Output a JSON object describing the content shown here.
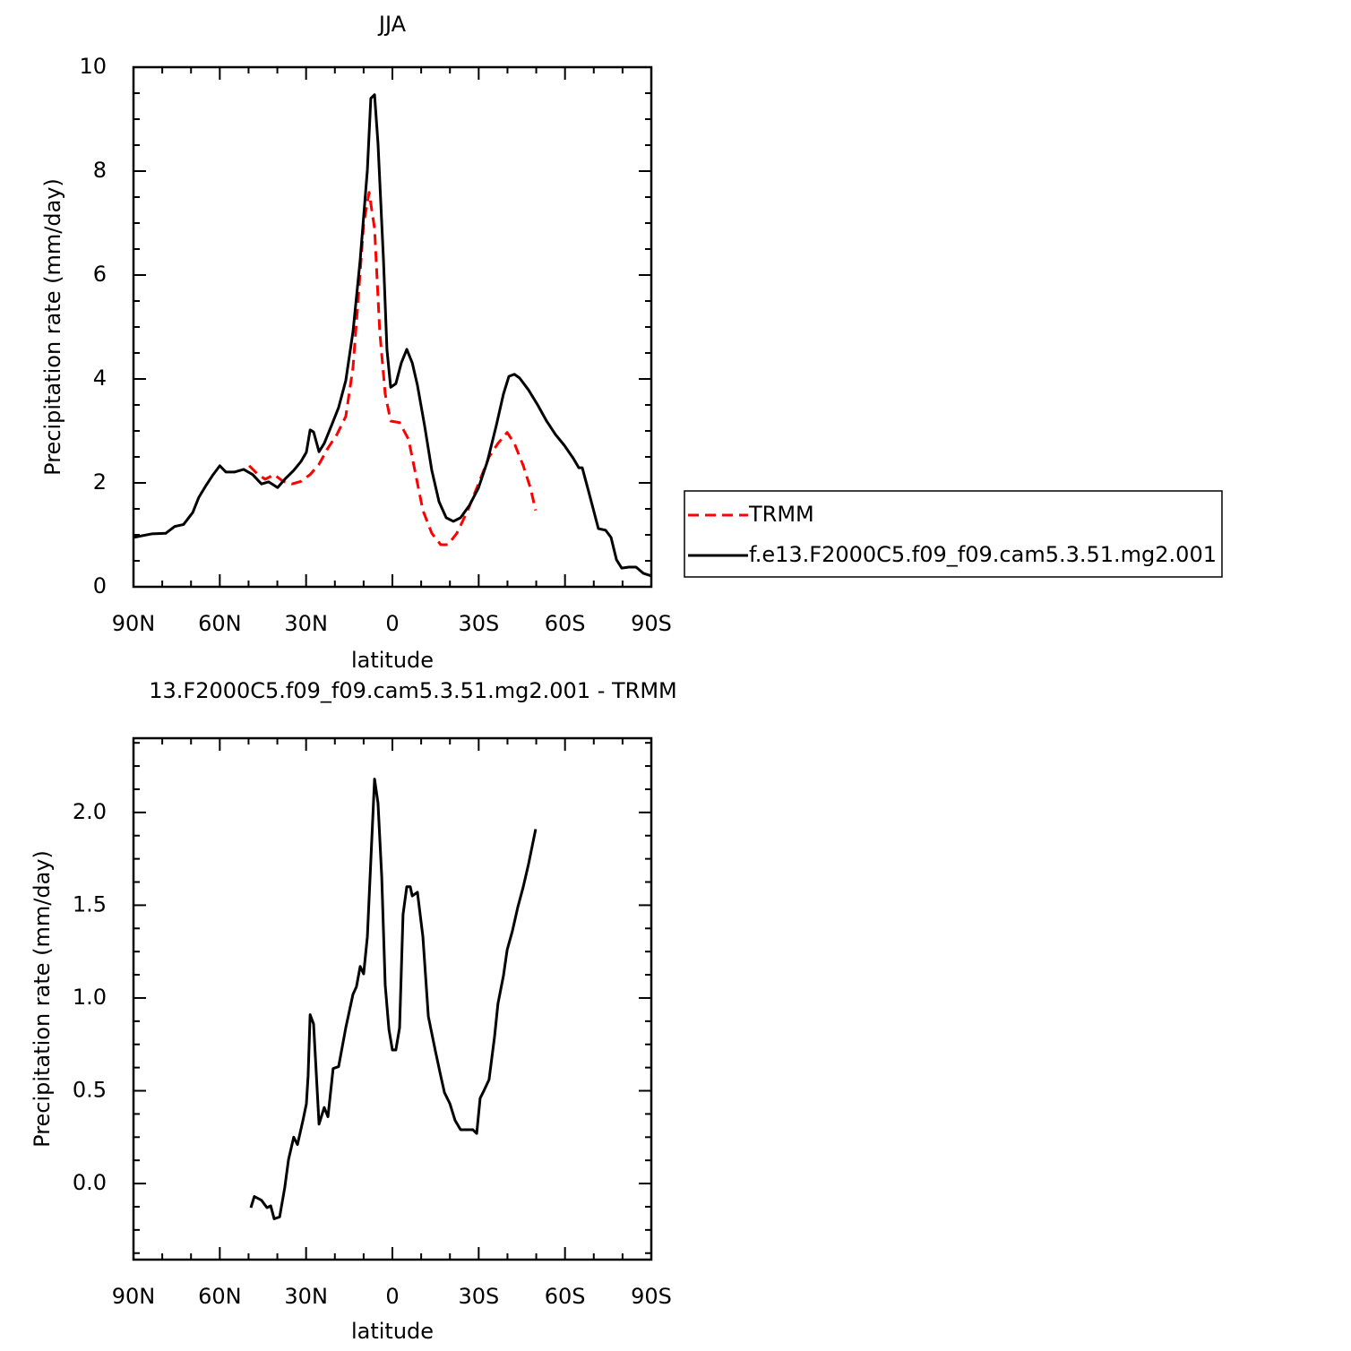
{
  "chart_data": [
    {
      "type": "line",
      "title": "JJA",
      "x_label": "latitude",
      "y_label": "Precipitation rate (mm/day)",
      "xlim": [
        90,
        -90
      ],
      "xticks": [
        {
          "value": 90,
          "label": "90N"
        },
        {
          "value": 60,
          "label": "60N"
        },
        {
          "value": 30,
          "label": "30N"
        },
        0,
        {
          "value": -30,
          "label": "30S"
        },
        {
          "value": -60,
          "label": "60S"
        },
        {
          "value": -90,
          "label": "90S"
        }
      ],
      "xminorticks": [
        80,
        70,
        50,
        40,
        20,
        10,
        -10,
        -20,
        -40,
        -50,
        -70,
        -80
      ],
      "ylim": [
        0,
        10
      ],
      "yticks": [
        0,
        2,
        4,
        6,
        8,
        10
      ],
      "yminorticks": [
        0.5,
        1,
        1.5,
        2.5,
        3,
        3.5,
        4.5,
        5,
        5.5,
        6.5,
        7,
        7.5,
        8.5,
        9,
        9.5
      ],
      "legend": "right",
      "series": [
        {
          "name": "TRMM",
          "color": "#ff0000",
          "line_style": "dashed",
          "x": [
            49.8,
            46.7,
            44.2,
            41.1,
            38.0,
            34.9,
            31.8,
            28.6,
            25.5,
            22.4,
            19.3,
            16.2,
            13.7,
            11.8,
            10.0,
            8.1,
            6.2,
            4.4,
            2.5,
            0.6,
            -2.5,
            -5.6,
            -8.1,
            -10.6,
            -13.7,
            -16.8,
            -19.3,
            -22.4,
            -26.2,
            -29.9,
            -33.6,
            -36.7,
            -39.9,
            -42.4,
            -45.5,
            -48.0,
            -49.8
          ],
          "values": [
            2.33,
            2.16,
            2.07,
            2.16,
            2.03,
            1.98,
            2.03,
            2.16,
            2.36,
            2.67,
            2.93,
            3.28,
            4.22,
            5.6,
            6.98,
            7.59,
            6.9,
            4.91,
            3.71,
            3.19,
            3.16,
            2.84,
            2.16,
            1.47,
            1.03,
            0.81,
            0.81,
            1.03,
            1.47,
            1.98,
            2.5,
            2.76,
            2.97,
            2.76,
            2.33,
            1.9,
            1.47
          ]
        },
        {
          "name": "f.e13.F2000C5.f09_f09.cam5.3.51.mg2.001",
          "color": "#000000",
          "line_style": "solid",
          "x": [
            90,
            83.5,
            78.8,
            75.7,
            72.6,
            69.4,
            67.3,
            64.8,
            62.3,
            60,
            57.9,
            54.8,
            51.7,
            48.6,
            45.5,
            43,
            39.9,
            37.4,
            34.3,
            31.8,
            29.9,
            28.6,
            27.4,
            25.5,
            23.7,
            21.2,
            18.7,
            16.2,
            13.7,
            11.2,
            8.7,
            7.5,
            6.2,
            5.0,
            3.1,
            1.9,
            0.6,
            -1.2,
            -3.1,
            -5.0,
            -6.9,
            -8.7,
            -11.2,
            -13.7,
            -16.2,
            -18.7,
            -21.2,
            -23.7,
            -26.8,
            -29.9,
            -33.0,
            -36.1,
            -38.6,
            -40.5,
            -42.4,
            -44.2,
            -47.3,
            -50.5,
            -53.6,
            -56.7,
            -59.8,
            -62.9,
            -64.8,
            -66.0,
            -67.9,
            -69.8,
            -71.6,
            -74.1,
            -76.0,
            -77.9,
            -79.7,
            -82.2,
            -84.7,
            -87.2,
            -90
          ],
          "values": [
            0.95,
            1.02,
            1.03,
            1.16,
            1.2,
            1.43,
            1.72,
            1.95,
            2.16,
            2.33,
            2.21,
            2.21,
            2.26,
            2.16,
            1.98,
            2.02,
            1.91,
            2.07,
            2.24,
            2.41,
            2.59,
            3.02,
            2.98,
            2.6,
            2.76,
            3.1,
            3.45,
            3.97,
            4.91,
            6.29,
            8.02,
            9.4,
            9.47,
            8.53,
            6.29,
            4.57,
            3.84,
            3.91,
            4.31,
            4.57,
            4.31,
            3.88,
            3.1,
            2.24,
            1.64,
            1.33,
            1.26,
            1.33,
            1.57,
            1.9,
            2.41,
            3.1,
            3.71,
            4.05,
            4.09,
            4.02,
            3.79,
            3.5,
            3.19,
            2.93,
            2.72,
            2.47,
            2.29,
            2.29,
            1.9,
            1.5,
            1.12,
            1.09,
            0.95,
            0.52,
            0.36,
            0.38,
            0.38,
            0.26,
            0.21
          ]
        }
      ]
    },
    {
      "type": "line",
      "title": "13.F2000C5.f09_f09.cam5.3.51.mg2.001 - TRMM",
      "x_label": "latitude",
      "y_label": "Precipitation rate (mm/day)",
      "xlim": [
        90,
        -90
      ],
      "xticks": [
        {
          "value": 90,
          "label": "90N"
        },
        {
          "value": 60,
          "label": "60N"
        },
        {
          "value": 30,
          "label": "30N"
        },
        0,
        {
          "value": -30,
          "label": "30S"
        },
        {
          "value": -60,
          "label": "60S"
        },
        {
          "value": -90,
          "label": "90S"
        }
      ],
      "xminorticks": [
        80,
        70,
        50,
        40,
        20,
        10,
        -10,
        -20,
        -40,
        -50,
        -70,
        -80
      ],
      "ylim": [
        -0.41,
        2.4
      ],
      "yticks": [
        {
          "value": 0,
          "label": "0.0"
        },
        0.5,
        {
          "value": 1,
          "label": "1.0"
        },
        1.5,
        {
          "value": 2,
          "label": "2.0"
        }
      ],
      "yminorticks": [
        -0.375,
        -0.25,
        -0.125,
        0.125,
        0.25,
        0.375,
        0.625,
        0.75,
        0.875,
        1.125,
        1.25,
        1.375,
        1.625,
        1.75,
        1.875,
        2.125,
        2.25,
        2.375
      ],
      "series": [
        {
          "color": "#000000",
          "line_style": "solid",
          "x": [
            49.2,
            48.0,
            45.5,
            43.6,
            42.3,
            41.1,
            39.2,
            37.4,
            36.1,
            34.3,
            33.0,
            31.1,
            29.9,
            29.3,
            28.6,
            27.4,
            25.5,
            23.7,
            22.4,
            20.6,
            18.7,
            16.2,
            13.7,
            12.5,
            11.2,
            10.0,
            8.7,
            7.5,
            6.2,
            5.0,
            3.7,
            2.5,
            1.2,
            0,
            -1.2,
            -2.5,
            -3.7,
            -5.0,
            -6.2,
            -6.9,
            -8.7,
            -10.6,
            -12.5,
            -15.0,
            -16.8,
            -18.1,
            -20.0,
            -21.8,
            -23.7,
            -26.2,
            -28.0,
            -29.3,
            -30.5,
            -31.8,
            -33.6,
            -35.5,
            -36.7,
            -38.6,
            -39.9,
            -41.7,
            -43.6,
            -45.5,
            -47.3,
            -49.8
          ],
          "values": [
            -0.13,
            -0.07,
            -0.09,
            -0.13,
            -0.12,
            -0.19,
            -0.18,
            -0.02,
            0.13,
            0.25,
            0.21,
            0.34,
            0.43,
            0.58,
            0.91,
            0.86,
            0.32,
            0.41,
            0.36,
            0.62,
            0.63,
            0.84,
            1.02,
            1.06,
            1.17,
            1.13,
            1.33,
            1.74,
            2.18,
            2.05,
            1.65,
            1.07,
            0.83,
            0.72,
            0.72,
            0.84,
            1.45,
            1.6,
            1.6,
            1.55,
            1.57,
            1.33,
            0.9,
            0.71,
            0.58,
            0.49,
            0.43,
            0.34,
            0.29,
            0.29,
            0.29,
            0.27,
            0.46,
            0.5,
            0.56,
            0.79,
            0.97,
            1.12,
            1.26,
            1.36,
            1.49,
            1.6,
            1.72,
            1.91
          ]
        }
      ]
    }
  ]
}
